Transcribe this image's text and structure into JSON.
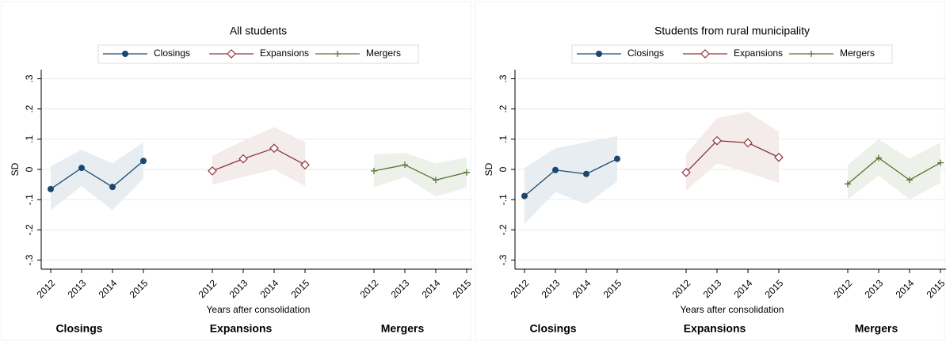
{
  "chart_data": [
    {
      "type": "line",
      "title": "All students",
      "ylabel": "SD",
      "xlabel": "Years after consolidation",
      "categories": [
        "2012",
        "2013",
        "2014",
        "2015"
      ],
      "ylim": [
        -0.33,
        0.33
      ],
      "yticks": [
        {
          "value": -0.3,
          "label": "-.3"
        },
        {
          "value": -0.2,
          "label": "-.2"
        },
        {
          "value": -0.1,
          "label": "-.1"
        },
        0,
        {
          "value": 0.1,
          "label": ".1"
        },
        {
          "value": 0.2,
          "label": ".2"
        },
        {
          "value": 0.3,
          "label": ".3"
        }
      ],
      "grid": true,
      "series": [
        {
          "name": "Closings",
          "color": "#1a476f",
          "marker": "circle",
          "values": [
            -0.065,
            0.005,
            -0.058,
            0.028
          ],
          "lower": [
            -0.135,
            -0.055,
            -0.135,
            -0.03
          ],
          "upper": [
            0.01,
            0.065,
            0.02,
            0.09
          ]
        },
        {
          "name": "Expansions",
          "color": "#90353b",
          "marker": "diamond",
          "values": [
            -0.005,
            0.035,
            0.07,
            0.015
          ],
          "lower": [
            -0.05,
            -0.025,
            0.0,
            -0.055
          ],
          "upper": [
            0.045,
            0.095,
            0.14,
            0.09
          ]
        },
        {
          "name": "Mergers",
          "color": "#55752f",
          "marker": "plus",
          "values": [
            -0.005,
            0.015,
            -0.035,
            -0.01
          ],
          "lower": [
            -0.06,
            -0.025,
            -0.09,
            -0.06
          ],
          "upper": [
            0.05,
            0.055,
            0.02,
            0.04
          ]
        }
      ]
    },
    {
      "type": "line",
      "title": "Students from rural municipality",
      "ylabel": "SD",
      "xlabel": "Years after consolidation",
      "categories": [
        "2012",
        "2013",
        "2014",
        "2015"
      ],
      "ylim": [
        -0.33,
        0.33
      ],
      "yticks": [
        {
          "value": -0.3,
          "label": "-.3"
        },
        {
          "value": -0.2,
          "label": "-.2"
        },
        {
          "value": -0.1,
          "label": "-.1"
        },
        0,
        {
          "value": 0.1,
          "label": ".1"
        },
        {
          "value": 0.2,
          "label": ".2"
        },
        {
          "value": 0.3,
          "label": ".3"
        }
      ],
      "grid": true,
      "series": [
        {
          "name": "Closings",
          "color": "#1a476f",
          "marker": "circle",
          "values": [
            -0.088,
            -0.002,
            -0.015,
            0.035
          ],
          "lower": [
            -0.18,
            -0.075,
            -0.115,
            -0.04
          ],
          "upper": [
            0.005,
            0.07,
            0.09,
            0.11
          ]
        },
        {
          "name": "Expansions",
          "color": "#90353b",
          "marker": "diamond",
          "values": [
            -0.01,
            0.095,
            0.088,
            0.04
          ],
          "lower": [
            -0.07,
            0.02,
            -0.01,
            -0.045
          ],
          "upper": [
            0.05,
            0.17,
            0.19,
            0.125
          ]
        },
        {
          "name": "Mergers",
          "color": "#55752f",
          "marker": "plus",
          "values": [
            -0.048,
            0.038,
            -0.035,
            0.022
          ],
          "lower": [
            -0.1,
            -0.02,
            -0.1,
            -0.045
          ],
          "upper": [
            0.015,
            0.1,
            0.035,
            0.09
          ]
        }
      ]
    }
  ]
}
